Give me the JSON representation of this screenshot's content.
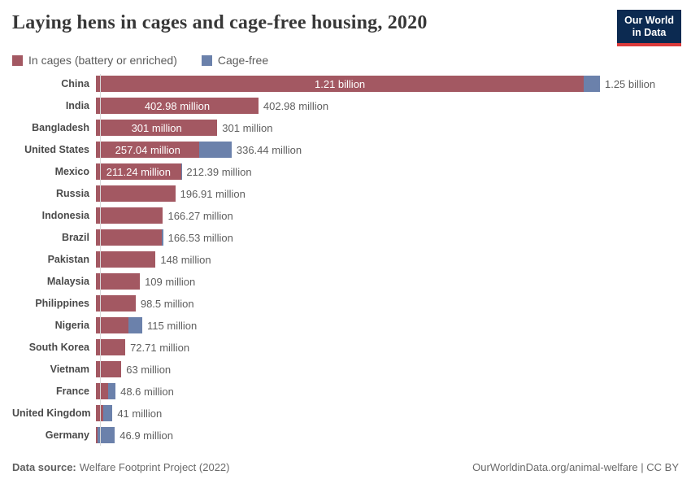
{
  "header": {
    "title": "Laying hens in cages and cage-free housing, 2020",
    "logo_line1": "Our World",
    "logo_line2": "in Data"
  },
  "legend": {
    "cages_label": "In cages (battery or enriched)",
    "cage_free_label": "Cage-free"
  },
  "colors": {
    "cages": "#a35862",
    "cage_free": "#6b81ab",
    "logo_bg": "#0c2a51",
    "logo_accent": "#dc3b3b",
    "axis": "#d9d9d9"
  },
  "chart_data": {
    "type": "bar",
    "orientation": "horizontal",
    "title": "Laying hens in cages and cage-free housing, 2020",
    "unit": "million hens",
    "xlim": [
      0,
      1250
    ],
    "legend_position": "top",
    "series_names": [
      "In cages (battery or enriched)",
      "Cage-free"
    ],
    "rows": [
      {
        "country": "China",
        "cages": 1210,
        "total": 1250,
        "inside_label": "1.21 billion",
        "total_label": "1.25 billion"
      },
      {
        "country": "India",
        "cages": 402.98,
        "total": 402.98,
        "inside_label": "402.98 million",
        "total_label": "402.98 million"
      },
      {
        "country": "Bangladesh",
        "cages": 301,
        "total": 301,
        "inside_label": "301 million",
        "total_label": "301 million"
      },
      {
        "country": "United States",
        "cages": 257.04,
        "total": 336.44,
        "inside_label": "257.04 million",
        "total_label": "336.44 million"
      },
      {
        "country": "Mexico",
        "cages": 211.24,
        "total": 212.39,
        "inside_label": "211.24 million",
        "total_label": "212.39 million"
      },
      {
        "country": "Russia",
        "cages": 196.91,
        "total": 196.91,
        "total_label": "196.91 million"
      },
      {
        "country": "Indonesia",
        "cages": 166.27,
        "total": 166.27,
        "total_label": "166.27 million"
      },
      {
        "country": "Brazil",
        "cages": 163,
        "total": 166.53,
        "total_label": "166.53 million"
      },
      {
        "country": "Pakistan",
        "cages": 148,
        "total": 148,
        "total_label": "148 million"
      },
      {
        "country": "Malaysia",
        "cages": 109,
        "total": 109,
        "total_label": "109 million"
      },
      {
        "country": "Philippines",
        "cages": 98.5,
        "total": 98.5,
        "total_label": "98.5 million"
      },
      {
        "country": "Nigeria",
        "cages": 80,
        "total": 115,
        "total_label": "115 million"
      },
      {
        "country": "South Korea",
        "cages": 72.71,
        "total": 72.71,
        "total_label": "72.71 million"
      },
      {
        "country": "Vietnam",
        "cages": 63,
        "total": 63,
        "total_label": "63 million"
      },
      {
        "country": "France",
        "cages": 30,
        "total": 48.6,
        "total_label": "48.6 million"
      },
      {
        "country": "United Kingdom",
        "cages": 18,
        "total": 41,
        "total_label": "41 million"
      },
      {
        "country": "Germany",
        "cages": 3.5,
        "total": 46.9,
        "total_label": "46.9 million"
      }
    ]
  },
  "footer": {
    "source_label": "Data source:",
    "source": "Welfare Footprint Project (2022)",
    "attribution": "OurWorldinData.org/animal-welfare | CC BY"
  }
}
